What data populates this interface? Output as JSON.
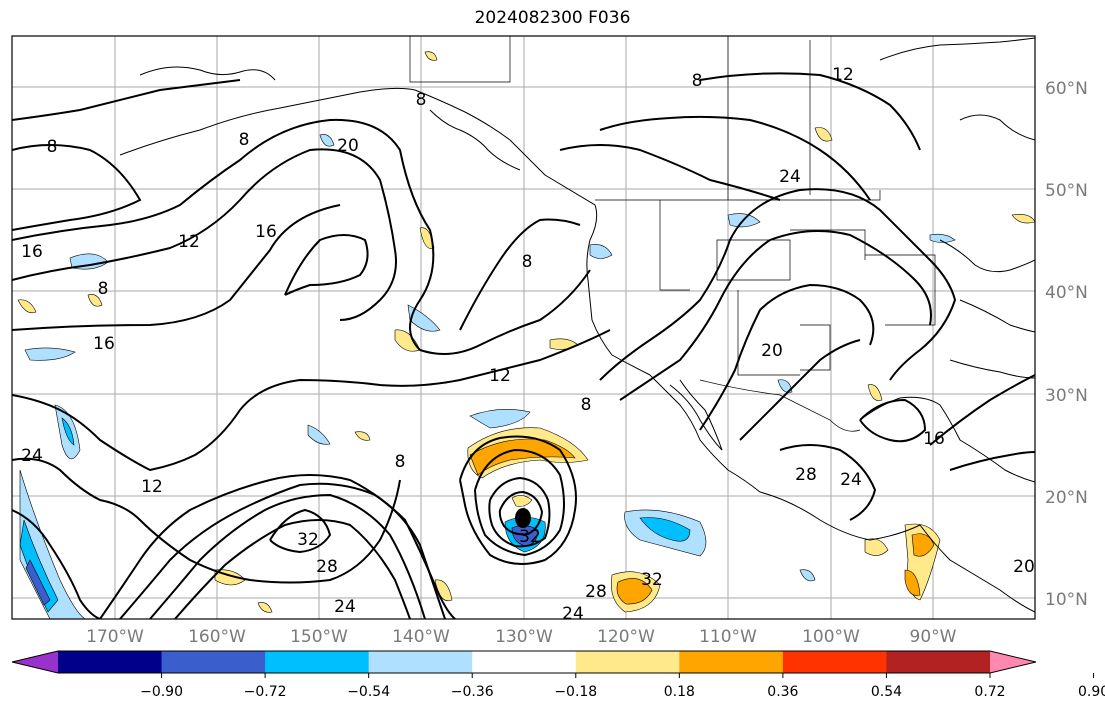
{
  "title": "2024082300 F036",
  "map": {
    "lon_range": [
      "180°W",
      "84°W"
    ],
    "lat_range": [
      "8°N",
      "65°N"
    ],
    "gridlines": true,
    "lat_labels": [
      "60°N",
      "50°N",
      "40°N",
      "30°N",
      "20°N",
      "10°N"
    ],
    "lon_labels": [
      "170°W",
      "160°W",
      "150°W",
      "140°W",
      "130°W",
      "120°W",
      "110°W",
      "100°W",
      "90°W"
    ],
    "contour_color": "#000000",
    "contour_labels": [
      "8",
      "12",
      "16",
      "20",
      "24",
      "28",
      "32"
    ],
    "cyclone_center_label": "32"
  },
  "colorbar": {
    "ticks": [
      "−0.90",
      "−0.72",
      "−0.54",
      "−0.36",
      "−0.18",
      "0.18",
      "0.36",
      "0.54",
      "0.72",
      "0.90"
    ],
    "colors": [
      "#9932cc",
      "#00008b",
      "#3a5fcd",
      "#00bfff",
      "#afe0ff",
      "#ffffff",
      "#ffe98a",
      "#ffa500",
      "#ff3300",
      "#b22222",
      "#ff88b0"
    ],
    "extend": "both"
  }
}
